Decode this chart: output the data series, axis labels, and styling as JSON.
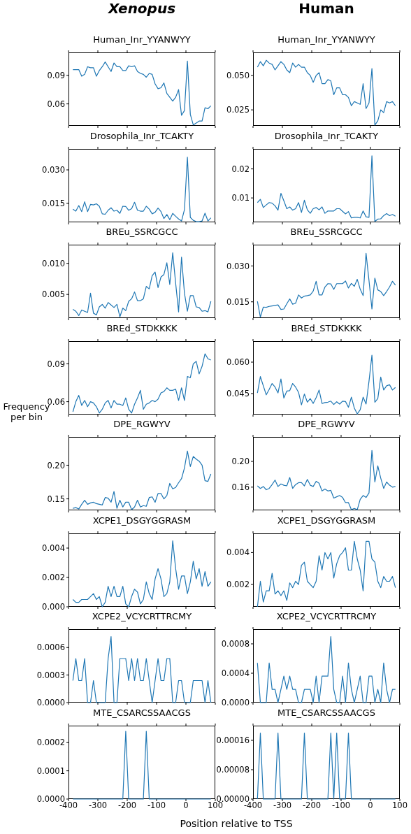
{
  "chart_data": [
    {
      "type": "line",
      "subtitle": "Xenopus",
      "title": "Human_Inr_YYANWYY",
      "color": "#1f77b4",
      "tick_labels": "y",
      "xlim": [
        -400,
        100
      ],
      "xticks": [
        -400,
        -300,
        -200,
        -100,
        0,
        100
      ],
      "ylim": [
        0.037,
        0.114
      ],
      "yticks": [
        0.06,
        0.09
      ],
      "x": [
        -385,
        -375,
        -365,
        -355,
        -345,
        -335,
        -325,
        -315,
        -305,
        -295,
        -285,
        -275,
        -265,
        -255,
        -245,
        -235,
        -225,
        -215,
        -205,
        -195,
        -185,
        -175,
        -165,
        -155,
        -145,
        -135,
        -125,
        -115,
        -105,
        -95,
        -85,
        -75,
        -65,
        -55,
        -45,
        -35,
        -25,
        -15,
        -5,
        5,
        15,
        25,
        35,
        45,
        55,
        65,
        75,
        85
      ],
      "values": [
        0.096,
        0.096,
        0.096,
        0.089,
        0.091,
        0.099,
        0.098,
        0.098,
        0.089,
        0.095,
        0.099,
        0.104,
        0.099,
        0.094,
        0.103,
        0.099,
        0.099,
        0.095,
        0.095,
        0.1,
        0.099,
        0.1,
        0.094,
        0.092,
        0.091,
        0.088,
        0.092,
        0.091,
        0.081,
        0.076,
        0.077,
        0.082,
        0.071,
        0.067,
        0.063,
        0.067,
        0.075,
        0.048,
        0.053,
        0.105,
        0.049,
        0.038,
        0.04,
        0.042,
        0.042,
        0.056,
        0.055,
        0.058
      ]
    },
    {
      "type": "line",
      "subtitle": "Human",
      "title": "Human_Inr_YYANWYY",
      "color": "#1f77b4",
      "tick_labels": "y",
      "xlim": [
        -400,
        100
      ],
      "xticks": [
        -400,
        -300,
        -200,
        -100,
        0,
        100
      ],
      "ylim": [
        0.0134,
        0.0667
      ],
      "yticks": [
        0.025,
        {
          "value": 0.05,
          "label": "0.050"
        }
      ],
      "x": [
        -385,
        -375,
        -365,
        -355,
        -345,
        -335,
        -325,
        -315,
        -305,
        -295,
        -285,
        -275,
        -265,
        -255,
        -245,
        -235,
        -225,
        -215,
        -205,
        -195,
        -185,
        -175,
        -165,
        -155,
        -145,
        -135,
        -125,
        -115,
        -105,
        -95,
        -85,
        -75,
        -65,
        -55,
        -45,
        -35,
        -25,
        -15,
        -5,
        5,
        15,
        25,
        35,
        45,
        55,
        65,
        75,
        85
      ],
      "values": [
        0.056,
        0.06,
        0.057,
        0.061,
        0.059,
        0.058,
        0.054,
        0.057,
        0.06,
        0.058,
        0.054,
        0.052,
        0.059,
        0.056,
        0.058,
        0.056,
        0.056,
        0.052,
        0.05,
        0.045,
        0.05,
        0.052,
        0.044,
        0.044,
        0.047,
        0.046,
        0.036,
        0.041,
        0.041,
        0.036,
        0.036,
        0.034,
        0.028,
        0.031,
        0.03,
        0.029,
        0.044,
        0.026,
        0.03,
        0.055,
        0.014,
        0.017,
        0.025,
        0.023,
        0.031,
        0.03,
        0.031,
        0.028
      ]
    },
    {
      "type": "line",
      "title": "Drosophila_Inr_TCAKTY",
      "color": "#1f77b4",
      "tick_labels": "y",
      "xlim": [
        -400,
        100
      ],
      "xticks": [
        -400,
        -300,
        -200,
        -100,
        0,
        100
      ],
      "ylim": [
        0.0065,
        0.0394
      ],
      "yticks": [
        {
          "value": 0.015,
          "label": "0.015"
        },
        {
          "value": 0.03,
          "label": "0.030"
        }
      ],
      "x": [
        -385,
        -375,
        -365,
        -355,
        -345,
        -335,
        -325,
        -315,
        -305,
        -295,
        -285,
        -275,
        -265,
        -255,
        -245,
        -235,
        -225,
        -215,
        -205,
        -195,
        -185,
        -175,
        -165,
        -155,
        -145,
        -135,
        -125,
        -115,
        -105,
        -95,
        -85,
        -75,
        -65,
        -55,
        -45,
        -35,
        -25,
        -15,
        -5,
        5,
        15,
        25,
        35,
        45,
        55,
        65,
        75,
        85
      ],
      "values": [
        0.0124,
        0.0115,
        0.014,
        0.0113,
        0.0157,
        0.0113,
        0.0145,
        0.0143,
        0.0148,
        0.0137,
        0.0103,
        0.0101,
        0.0119,
        0.013,
        0.0115,
        0.0119,
        0.0105,
        0.0137,
        0.0136,
        0.0119,
        0.0126,
        0.0155,
        0.0119,
        0.0115,
        0.0115,
        0.0137,
        0.0124,
        0.0103,
        0.011,
        0.0129,
        0.0113,
        0.0082,
        0.01,
        0.0077,
        0.0105,
        0.0092,
        0.008,
        0.0071,
        0.0122,
        0.0357,
        0.0087,
        0.0074,
        0.0068,
        0.0068,
        0.0071,
        0.0106,
        0.0071,
        0.0085
      ]
    },
    {
      "type": "line",
      "title": "Drosophila_Inr_TCAKTY",
      "color": "#1f77b4",
      "tick_labels": "y",
      "xlim": [
        -400,
        100
      ],
      "xticks": [
        -400,
        -300,
        -200,
        -100,
        0,
        100
      ],
      "ylim": [
        0.0016,
        0.0269
      ],
      "yticks": [
        0.01,
        0.02
      ],
      "x": [
        -385,
        -375,
        -365,
        -355,
        -345,
        -335,
        -325,
        -315,
        -305,
        -295,
        -285,
        -275,
        -265,
        -255,
        -245,
        -235,
        -225,
        -215,
        -205,
        -195,
        -185,
        -175,
        -165,
        -155,
        -145,
        -135,
        -125,
        -115,
        -105,
        -95,
        -85,
        -75,
        -65,
        -55,
        -45,
        -35,
        -25,
        -15,
        -5,
        5,
        15,
        25,
        35,
        45,
        55,
        65,
        75,
        85
      ],
      "values": [
        0.0084,
        0.0095,
        0.0067,
        0.0076,
        0.0084,
        0.0082,
        0.0073,
        0.0058,
        0.0116,
        0.009,
        0.0063,
        0.0069,
        0.0058,
        0.0063,
        0.0084,
        0.005,
        0.0092,
        0.0059,
        0.0047,
        0.0063,
        0.0067,
        0.0059,
        0.0069,
        0.0047,
        0.0055,
        0.0055,
        0.0055,
        0.0063,
        0.0063,
        0.0054,
        0.0045,
        0.0053,
        0.0031,
        0.0033,
        0.0033,
        0.0031,
        0.0055,
        0.0035,
        0.0033,
        0.0245,
        0.0019,
        0.0027,
        0.0028,
        0.0039,
        0.0046,
        0.0039,
        0.0043,
        0.0037
      ]
    },
    {
      "type": "line",
      "title": "BREu_SSRCGCC",
      "color": "#1f77b4",
      "tick_labels": "y",
      "xlim": [
        -400,
        100
      ],
      "xticks": [
        -400,
        -300,
        -200,
        -100,
        0,
        100
      ],
      "ylim": [
        0.0012,
        0.013
      ],
      "yticks": [
        0.005,
        {
          "value": 0.01,
          "label": "0.010"
        }
      ],
      "x": [
        -385,
        -375,
        -365,
        -355,
        -345,
        -335,
        -325,
        -315,
        -305,
        -295,
        -285,
        -275,
        -265,
        -255,
        -245,
        -235,
        -225,
        -215,
        -205,
        -195,
        -185,
        -175,
        -165,
        -155,
        -145,
        -135,
        -125,
        -115,
        -105,
        -95,
        -85,
        -75,
        -65,
        -55,
        -45,
        -35,
        -25,
        -15,
        -5,
        5,
        15,
        25,
        35,
        45,
        55,
        65,
        75,
        85
      ],
      "values": [
        0.0026,
        0.0023,
        0.0016,
        0.0025,
        0.0023,
        0.0021,
        0.0052,
        0.002,
        0.0017,
        0.003,
        0.0034,
        0.0028,
        0.0037,
        0.0033,
        0.0029,
        0.0034,
        0.0014,
        0.0028,
        0.0024,
        0.0039,
        0.0043,
        0.0054,
        0.004,
        0.004,
        0.0043,
        0.0063,
        0.0059,
        0.008,
        0.0086,
        0.0061,
        0.0078,
        0.0082,
        0.0101,
        0.0066,
        0.0117,
        0.0068,
        0.0022,
        0.011,
        0.0052,
        0.0023,
        0.0048,
        0.0048,
        0.003,
        0.0029,
        0.0023,
        0.0024,
        0.0022,
        0.0039
      ]
    },
    {
      "type": "line",
      "title": "BREu_SSRCGCC",
      "color": "#1f77b4",
      "tick_labels": "y",
      "xlim": [
        -400,
        100
      ],
      "xticks": [
        -400,
        -300,
        -200,
        -100,
        0,
        100
      ],
      "ylim": [
        0.0082,
        0.0389
      ],
      "yticks": [
        {
          "value": 0.015,
          "label": "0.015"
        },
        {
          "value": 0.03,
          "label": "0.030"
        }
      ],
      "x": [
        -385,
        -375,
        -365,
        -355,
        -345,
        -335,
        -325,
        -315,
        -305,
        -295,
        -285,
        -275,
        -265,
        -255,
        -245,
        -235,
        -225,
        -215,
        -205,
        -195,
        -185,
        -175,
        -165,
        -155,
        -145,
        -135,
        -125,
        -115,
        -105,
        -95,
        -85,
        -75,
        -65,
        -55,
        -45,
        -35,
        -25,
        -15,
        -5,
        5,
        15,
        25,
        35,
        45,
        55,
        65,
        75,
        85
      ],
      "values": [
        0.0152,
        0.0086,
        0.0128,
        0.0127,
        0.0131,
        0.0133,
        0.0135,
        0.0137,
        0.0118,
        0.012,
        0.0142,
        0.0162,
        0.014,
        0.0144,
        0.0179,
        0.0166,
        0.0174,
        0.0176,
        0.0179,
        0.0195,
        0.0236,
        0.0179,
        0.0179,
        0.0212,
        0.0226,
        0.0225,
        0.0202,
        0.0226,
        0.0226,
        0.0226,
        0.0237,
        0.0208,
        0.0227,
        0.0215,
        0.0244,
        0.0203,
        0.0176,
        0.0353,
        0.0239,
        0.012,
        0.0249,
        0.02,
        0.0193,
        0.0176,
        0.0193,
        0.0212,
        0.0236,
        0.022
      ]
    },
    {
      "type": "line",
      "title": "BREd_STDKKKK",
      "ylabel": "Frequency per bin",
      "color": "#1f77b4",
      "tick_labels": "y",
      "xlim": [
        -400,
        100
      ],
      "xticks": [
        -400,
        -300,
        -200,
        -100,
        0,
        100
      ],
      "ylim": [
        0.0498,
        0.108
      ],
      "yticks": [
        0.06,
        0.09
      ],
      "x": [
        -385,
        -375,
        -365,
        -355,
        -345,
        -335,
        -325,
        -315,
        -305,
        -295,
        -285,
        -275,
        -265,
        -255,
        -245,
        -235,
        -225,
        -215,
        -205,
        -195,
        -185,
        -175,
        -165,
        -155,
        -145,
        -135,
        -125,
        -115,
        -105,
        -95,
        -85,
        -75,
        -65,
        -55,
        -45,
        -35,
        -25,
        -15,
        -5,
        5,
        15,
        25,
        35,
        45,
        55,
        65,
        75,
        85
      ],
      "values": [
        0.052,
        0.06,
        0.065,
        0.057,
        0.061,
        0.056,
        0.06,
        0.059,
        0.056,
        0.051,
        0.054,
        0.059,
        0.061,
        0.055,
        0.061,
        0.058,
        0.058,
        0.057,
        0.063,
        0.054,
        0.051,
        0.058,
        0.063,
        0.069,
        0.054,
        0.058,
        0.059,
        0.061,
        0.06,
        0.062,
        0.067,
        0.068,
        0.071,
        0.069,
        0.069,
        0.07,
        0.061,
        0.071,
        0.061,
        0.08,
        0.079,
        0.09,
        0.092,
        0.082,
        0.088,
        0.098,
        0.094,
        0.093
      ]
    },
    {
      "type": "line",
      "title": "BREd_STDKKKK",
      "color": "#1f77b4",
      "tick_labels": "y",
      "xlim": [
        -400,
        100
      ],
      "xticks": [
        -400,
        -300,
        -200,
        -100,
        0,
        100
      ],
      "ylim": [
        0.035,
        0.07
      ],
      "yticks": [
        0.045,
        {
          "value": 0.06,
          "label": "0.060"
        }
      ],
      "x": [
        -385,
        -375,
        -365,
        -355,
        -345,
        -335,
        -325,
        -315,
        -305,
        -295,
        -285,
        -275,
        -265,
        -255,
        -245,
        -235,
        -225,
        -215,
        -205,
        -195,
        -185,
        -175,
        -165,
        -155,
        -145,
        -135,
        -125,
        -115,
        -105,
        -95,
        -85,
        -75,
        -65,
        -55,
        -45,
        -35,
        -25,
        -15,
        -5,
        5,
        15,
        25,
        35,
        45,
        55,
        65,
        75,
        85
      ],
      "values": [
        0.0453,
        0.0531,
        0.0487,
        0.0444,
        0.047,
        0.0498,
        0.0481,
        0.0453,
        0.052,
        0.0429,
        0.0462,
        0.0464,
        0.0498,
        0.0481,
        0.0456,
        0.0396,
        0.0448,
        0.0409,
        0.0426,
        0.0403,
        0.0431,
        0.0467,
        0.0403,
        0.0407,
        0.0409,
        0.0414,
        0.0398,
        0.0411,
        0.04,
        0.0414,
        0.0412,
        0.0385,
        0.0433,
        0.0381,
        0.0353,
        0.0373,
        0.0433,
        0.04,
        0.0509,
        0.0633,
        0.0409,
        0.0426,
        0.0529,
        0.0467,
        0.0487,
        0.0492,
        0.0467,
        0.0479
      ]
    },
    {
      "type": "line",
      "title": "DPE_RGWYV",
      "color": "#1f77b4",
      "tick_labels": "y",
      "xlim": [
        -400,
        100
      ],
      "xticks": [
        -400,
        -300,
        -200,
        -100,
        0,
        100
      ],
      "ylim": [
        0.133,
        0.242
      ],
      "yticks": [
        0.15,
        {
          "value": 0.2,
          "label": "0.20"
        }
      ],
      "x": [
        -385,
        -375,
        -365,
        -355,
        -345,
        -335,
        -325,
        -315,
        -305,
        -295,
        -285,
        -275,
        -265,
        -255,
        -245,
        -235,
        -225,
        -215,
        -205,
        -195,
        -185,
        -175,
        -165,
        -155,
        -145,
        -135,
        -125,
        -115,
        -105,
        -95,
        -85,
        -75,
        -65,
        -55,
        -45,
        -35,
        -25,
        -15,
        -5,
        5,
        15,
        25,
        35,
        45,
        55,
        65,
        75,
        85
      ],
      "values": [
        0.136,
        0.137,
        0.135,
        0.142,
        0.148,
        0.142,
        0.144,
        0.145,
        0.143,
        0.142,
        0.141,
        0.152,
        0.151,
        0.145,
        0.161,
        0.136,
        0.148,
        0.138,
        0.145,
        0.145,
        0.134,
        0.138,
        0.148,
        0.138,
        0.14,
        0.139,
        0.152,
        0.153,
        0.145,
        0.158,
        0.158,
        0.15,
        0.155,
        0.173,
        0.165,
        0.167,
        0.174,
        0.18,
        0.196,
        0.221,
        0.198,
        0.213,
        0.209,
        0.206,
        0.2,
        0.177,
        0.176,
        0.187
      ]
    },
    {
      "type": "line",
      "title": "DPE_RGWYV",
      "color": "#1f77b4",
      "tick_labels": "y",
      "xlim": [
        -400,
        100
      ],
      "xticks": [
        -400,
        -300,
        -200,
        -100,
        0,
        100
      ],
      "ylim": [
        0.124,
        0.238
      ],
      "yticks": [
        0.16,
        {
          "value": 0.2,
          "label": "0.20"
        }
      ],
      "x": [
        -385,
        -375,
        -365,
        -355,
        -345,
        -335,
        -325,
        -315,
        -305,
        -295,
        -285,
        -275,
        -265,
        -255,
        -245,
        -235,
        -225,
        -215,
        -205,
        -195,
        -185,
        -175,
        -165,
        -155,
        -145,
        -135,
        -125,
        -115,
        -105,
        -95,
        -85,
        -75,
        -65,
        -55,
        -45,
        -35,
        -25,
        -15,
        -5,
        5,
        15,
        25,
        35,
        45,
        55,
        65,
        75,
        85
      ],
      "values": [
        0.162,
        0.158,
        0.161,
        0.156,
        0.158,
        0.164,
        0.171,
        0.161,
        0.165,
        0.163,
        0.162,
        0.175,
        0.158,
        0.164,
        0.167,
        0.167,
        0.162,
        0.172,
        0.163,
        0.161,
        0.169,
        0.166,
        0.154,
        0.157,
        0.154,
        0.155,
        0.143,
        0.145,
        0.147,
        0.144,
        0.136,
        0.136,
        0.125,
        0.127,
        0.125,
        0.141,
        0.147,
        0.144,
        0.151,
        0.217,
        0.168,
        0.193,
        0.174,
        0.158,
        0.168,
        0.163,
        0.16,
        0.161
      ]
    },
    {
      "type": "line",
      "title": "XCPE1_DSGYGGRASM",
      "color": "#1f77b4",
      "tick_labels": "y",
      "xlim": [
        -400,
        100
      ],
      "xticks": [
        -400,
        -300,
        -200,
        -100,
        0,
        100
      ],
      "ylim": [
        0,
        0.005
      ],
      "yticks": [
        {
          "value": 0,
          "label": "0.000"
        },
        0.002,
        0.004
      ],
      "x": [
        -385,
        -375,
        -365,
        -355,
        -345,
        -335,
        -325,
        -315,
        -305,
        -295,
        -285,
        -275,
        -265,
        -255,
        -245,
        -235,
        -225,
        -215,
        -205,
        -195,
        -185,
        -175,
        -165,
        -155,
        -145,
        -135,
        -125,
        -115,
        -105,
        -95,
        -85,
        -75,
        -65,
        -55,
        -45,
        -35,
        -25,
        -15,
        -5,
        5,
        15,
        25,
        35,
        45,
        55,
        65,
        75,
        85
      ],
      "values": [
        0.0005,
        0.0003,
        0.0003,
        0.0005,
        0.0005,
        0.0005,
        0.0007,
        0.0009,
        0.0005,
        0.0007,
        0.0,
        0.0003,
        0.0014,
        0.0007,
        0.0014,
        0.0007,
        0.0007,
        0.0014,
        0.0002,
        0.0,
        0.0007,
        0.0012,
        0.001,
        0.0002,
        0.0005,
        0.0017,
        0.0009,
        0.0005,
        0.0019,
        0.0026,
        0.0019,
        0.0007,
        0.0009,
        0.0017,
        0.0045,
        0.0026,
        0.0012,
        0.0021,
        0.0021,
        0.0009,
        0.0017,
        0.0031,
        0.0019,
        0.0026,
        0.0014,
        0.0024,
        0.0014,
        0.0017
      ]
    },
    {
      "type": "line",
      "title": "XCPE1_DSGYGGRASM",
      "color": "#1f77b4",
      "tick_labels": "y",
      "xlim": [
        -400,
        100
      ],
      "xticks": [
        -400,
        -300,
        -200,
        -100,
        0,
        100
      ],
      "ylim": [
        0.0006,
        0.0052
      ],
      "yticks": [
        0.002,
        0.004
      ],
      "x": [
        -385,
        -375,
        -365,
        -355,
        -345,
        -335,
        -325,
        -315,
        -305,
        -295,
        -285,
        -275,
        -265,
        -255,
        -245,
        -235,
        -225,
        -215,
        -205,
        -195,
        -185,
        -175,
        -165,
        -155,
        -145,
        -135,
        -125,
        -115,
        -105,
        -95,
        -85,
        -75,
        -65,
        -55,
        -45,
        -35,
        -25,
        -15,
        -5,
        5,
        15,
        25,
        35,
        45,
        55,
        65,
        75,
        85
      ],
      "values": [
        0.0006,
        0.0022,
        0.0009,
        0.0016,
        0.0016,
        0.0027,
        0.0014,
        0.0016,
        0.0013,
        0.0016,
        0.001,
        0.0021,
        0.0018,
        0.0022,
        0.002,
        0.0032,
        0.0034,
        0.0022,
        0.002,
        0.0018,
        0.0022,
        0.0038,
        0.0029,
        0.004,
        0.0036,
        0.004,
        0.0024,
        0.0033,
        0.0038,
        0.004,
        0.0043,
        0.0029,
        0.0029,
        0.0047,
        0.0036,
        0.0029,
        0.0016,
        0.0047,
        0.0047,
        0.0036,
        0.0034,
        0.0022,
        0.0018,
        0.0025,
        0.0022,
        0.0022,
        0.0025,
        0.0018
      ]
    },
    {
      "type": "line",
      "title": "XCPE2_VCYCRTTRCMY",
      "color": "#1f77b4",
      "tick_labels": "y",
      "xlim": [
        -400,
        100
      ],
      "xticks": [
        -400,
        -300,
        -200,
        -100,
        0,
        100
      ],
      "ylim": [
        0,
        0.0008
      ],
      "yticks": [
        {
          "value": 0,
          "label": "0.0000"
        },
        0.0003,
        0.0006
      ],
      "x": [
        -385,
        -375,
        -365,
        -355,
        -345,
        -335,
        -325,
        -315,
        -305,
        -295,
        -285,
        -275,
        -265,
        -255,
        -245,
        -235,
        -225,
        -215,
        -205,
        -195,
        -185,
        -175,
        -165,
        -155,
        -145,
        -135,
        -125,
        -115,
        -105,
        -95,
        -85,
        -75,
        -65,
        -55,
        -45,
        -35,
        -25,
        -15,
        -5,
        5,
        15,
        25,
        35,
        45,
        55,
        65,
        75,
        85
      ],
      "values": [
        0.00024,
        0.00048,
        0.00024,
        0.00024,
        0.00048,
        0,
        0,
        0.00024,
        0,
        0,
        0,
        0,
        0.00048,
        0.00072,
        0,
        0,
        0.00048,
        0.00048,
        0.00048,
        0.00024,
        0.00048,
        0.00024,
        0.00048,
        0.00024,
        0.00024,
        0.00048,
        0.00024,
        0,
        0.00024,
        0.00048,
        0.00024,
        0.00024,
        0.00048,
        0.00048,
        0,
        0,
        0.00024,
        0.00024,
        0,
        0,
        0,
        0.00024,
        0.00024,
        0.00024,
        0.00024,
        0,
        0.00024,
        0
      ]
    },
    {
      "type": "line",
      "title": "XCPE2_VCYCRTTRCMY",
      "color": "#1f77b4",
      "tick_labels": "y",
      "xlim": [
        -400,
        100
      ],
      "xticks": [
        -400,
        -300,
        -200,
        -100,
        0,
        100
      ],
      "ylim": [
        0,
        0.001
      ],
      "yticks": [
        {
          "value": 0,
          "label": "0.0000"
        },
        0.0004,
        0.0008
      ],
      "x": [
        -385,
        -375,
        -365,
        -355,
        -345,
        -335,
        -325,
        -315,
        -305,
        -295,
        -285,
        -275,
        -265,
        -255,
        -245,
        -235,
        -225,
        -215,
        -205,
        -195,
        -185,
        -175,
        -165,
        -155,
        -145,
        -135,
        -125,
        -115,
        -105,
        -95,
        -85,
        -75,
        -65,
        -55,
        -45,
        -35,
        -25,
        -15,
        -5,
        5,
        15,
        25,
        35,
        45,
        55,
        65,
        75,
        85
      ],
      "values": [
        0.00054,
        0,
        0,
        0,
        0.00054,
        0.00018,
        0.00018,
        0,
        0.00018,
        0.00036,
        0.00018,
        0.00036,
        0.00018,
        0.00018,
        0,
        0,
        0.00018,
        0.00018,
        0.00018,
        0,
        0.00036,
        0,
        0.00036,
        0.00036,
        0.00036,
        0.0009,
        0.00018,
        0,
        0,
        0.00036,
        0,
        0.00054,
        0.00018,
        0,
        0.00018,
        0.00036,
        0,
        0,
        0.00036,
        0.00036,
        0,
        0.00018,
        0,
        0.00054,
        0.00018,
        0,
        0.00018,
        0.00018
      ]
    },
    {
      "type": "line",
      "title": "MTE_CSARCSSAACGS",
      "xlabel": "Position relative to TSS",
      "color": "#1f77b4",
      "xlim": [
        -400,
        100
      ],
      "xticks": [
        -400,
        -300,
        -200,
        -100,
        0,
        100
      ],
      "ylim": [
        0,
        0.00026
      ],
      "yticks": [
        {
          "value": 0,
          "label": "0.0000"
        },
        0.0001,
        0.0002
      ],
      "x": [
        -385,
        -375,
        -365,
        -355,
        -345,
        -335,
        -325,
        -315,
        -305,
        -295,
        -285,
        -275,
        -265,
        -255,
        -245,
        -235,
        -225,
        -215,
        -205,
        -195,
        -185,
        -175,
        -165,
        -155,
        -145,
        -135,
        -125,
        -115,
        -105,
        -95,
        -85,
        -75,
        -65,
        -55,
        -45,
        -35,
        -25,
        -15,
        -5,
        5,
        15,
        25,
        35,
        45,
        55,
        65,
        75,
        85
      ],
      "values": [
        0,
        0,
        0,
        0,
        0,
        0,
        0,
        0,
        0,
        0,
        0,
        0,
        0,
        0,
        0,
        0,
        0,
        0,
        0.00024,
        0,
        0,
        0,
        0,
        0,
        0,
        0.00024,
        0,
        0,
        0,
        0,
        0,
        0,
        0,
        0,
        0,
        0,
        0,
        0,
        0,
        0,
        0,
        0,
        0,
        0,
        0,
        0,
        0,
        0
      ]
    },
    {
      "type": "line",
      "title": "MTE_CSARCSSAACGS",
      "color": "#1f77b4",
      "xlim": [
        -400,
        100
      ],
      "xticks": [
        -400,
        -300,
        -200,
        -100,
        0,
        100
      ],
      "ylim": [
        0,
        0.0002
      ],
      "yticks": [
        {
          "value": 0,
          "label": "0.00000"
        },
        {
          "value": 8e-05,
          "label": "0.00008"
        },
        {
          "value": 0.00016,
          "label": "0.00016"
        }
      ],
      "x": [
        -385,
        -375,
        -365,
        -355,
        -345,
        -335,
        -325,
        -315,
        -305,
        -295,
        -285,
        -275,
        -265,
        -255,
        -245,
        -235,
        -225,
        -215,
        -205,
        -195,
        -185,
        -175,
        -165,
        -155,
        -145,
        -135,
        -125,
        -115,
        -105,
        -95,
        -85,
        -75,
        -65,
        -55,
        -45,
        -35,
        -25,
        -15,
        -5,
        5,
        15,
        25,
        35,
        45,
        55,
        65,
        75,
        85
      ],
      "values": [
        0,
        0.00018,
        0,
        0,
        0,
        0,
        0,
        0.00018,
        0,
        0,
        0,
        0,
        0,
        0,
        0,
        0,
        0.00018,
        0,
        0,
        0,
        0,
        0,
        0,
        0,
        0,
        0.00018,
        0,
        0.00018,
        0,
        0,
        0,
        0.00018,
        0,
        0,
        0,
        0,
        0,
        0,
        0,
        0,
        0,
        0,
        0,
        0,
        0,
        0,
        0,
        0
      ]
    }
  ]
}
